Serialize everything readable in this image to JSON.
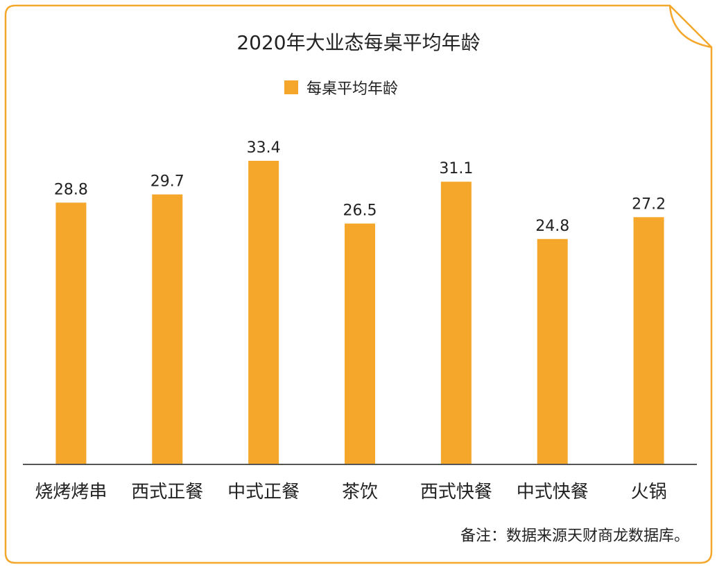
{
  "chart_data": {
    "type": "bar",
    "title": "2020年大业态每桌平均年龄",
    "categories": [
      "烧烤烤串",
      "西式正餐",
      "中式正餐",
      "茶饮",
      "西式快餐",
      "中式快餐",
      "火锅"
    ],
    "series": [
      {
        "name": "每桌平均年龄",
        "values": [
          28.8,
          29.7,
          33.4,
          26.5,
          31.1,
          24.8,
          27.2
        ]
      }
    ],
    "ylim": [
      0,
      36
    ],
    "grid": false,
    "legend_position": "top-center",
    "xlabel": "",
    "ylabel": ""
  },
  "colors": {
    "bar": "#F5A72B",
    "frame": "#F5A72B",
    "axis": "#555555"
  },
  "note": "备注：数据来源天财商龙数据库。"
}
